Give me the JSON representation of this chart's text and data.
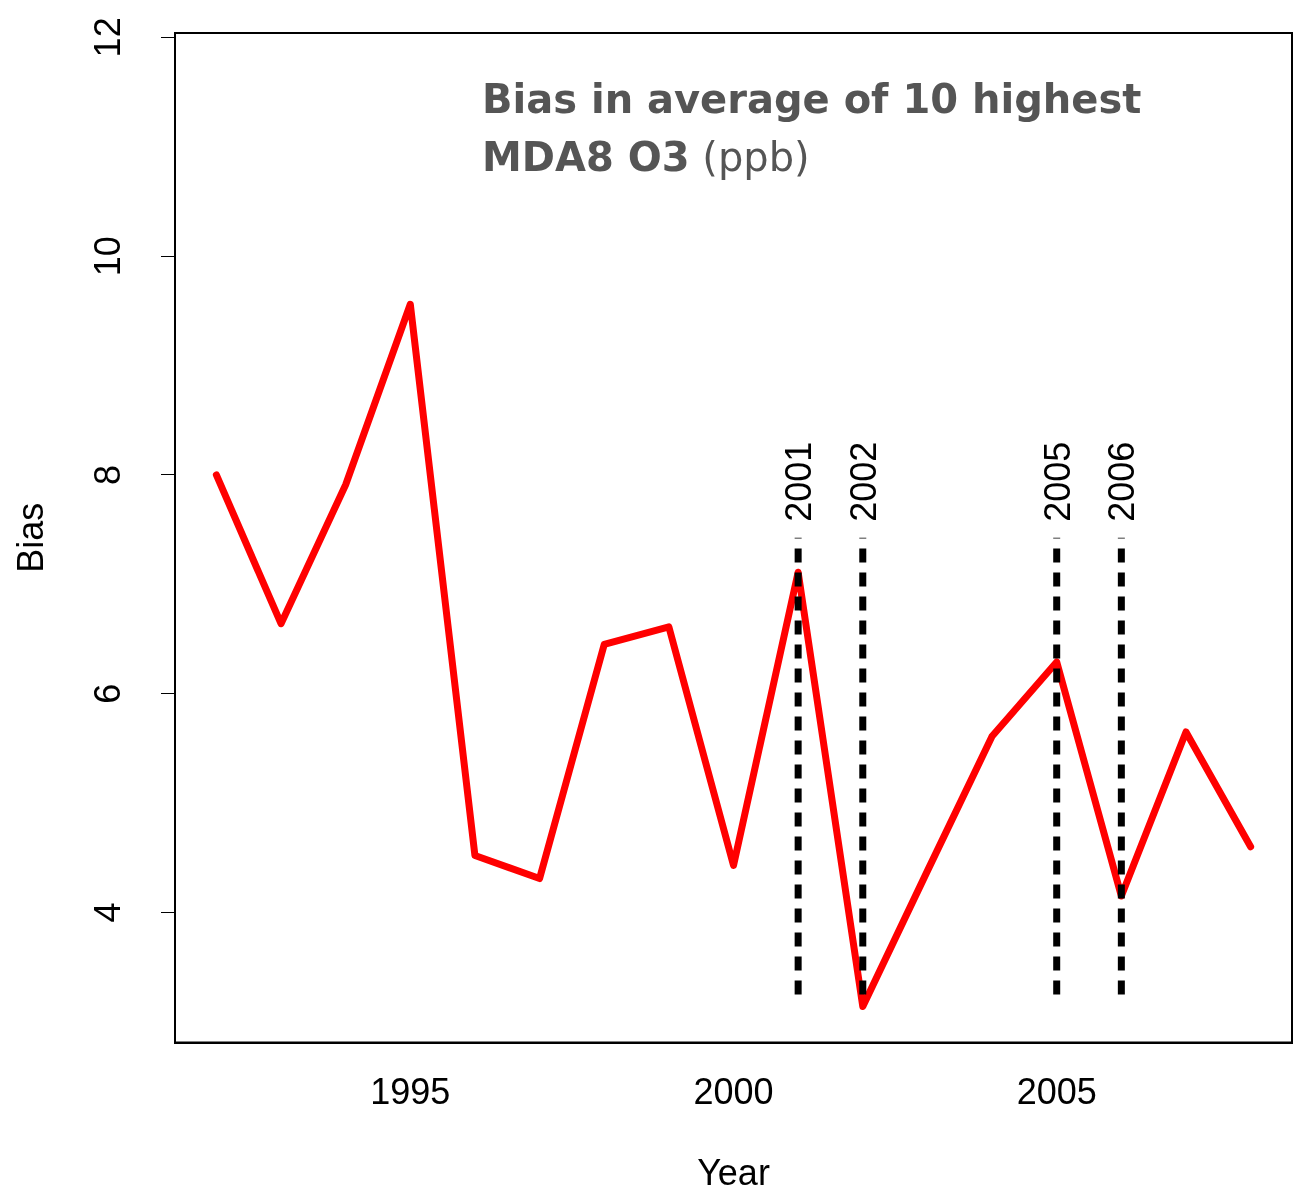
{
  "chart_data": {
    "type": "line",
    "title": "Bias in average of 10 highest MDA8 O3 (ppb)",
    "xlabel": "Year",
    "ylabel": "Bias",
    "x": [
      1992,
      1993,
      1994,
      1995,
      1996,
      1997,
      1998,
      1999,
      2000,
      2001,
      2002,
      2003,
      2004,
      2005,
      2006,
      2007,
      2008
    ],
    "series": [
      {
        "color": "#ff0000",
        "values": [
          8.0,
          6.64,
          7.91,
          9.56,
          4.52,
          4.31,
          6.45,
          6.61,
          4.43,
          7.11,
          3.14,
          4.38,
          5.61,
          6.29,
          4.15,
          5.65,
          4.6
        ]
      }
    ],
    "xlim": [
      1991.36,
      2008.64
    ],
    "xticks": [
      1995,
      2000,
      2005
    ],
    "ylim": [
      2.81,
      12.04
    ],
    "yticks": [
      4,
      6,
      8,
      10,
      12
    ],
    "ref_lines": [
      {
        "axis": "x",
        "value": 2001,
        "label": "2001",
        "color": "#000000",
        "line_style": "dashed"
      },
      {
        "axis": "x",
        "value": 2002,
        "label": "2002",
        "color": "#000000",
        "line_style": "dashed"
      },
      {
        "axis": "x",
        "value": 2005,
        "label": "2005",
        "color": "#000000",
        "line_style": "dashed"
      },
      {
        "axis": "x",
        "value": 2006,
        "label": "2006",
        "color": "#000000",
        "line_style": "dashed"
      }
    ],
    "grid": false,
    "legend": false,
    "marker": "none",
    "line_style": "solid"
  }
}
